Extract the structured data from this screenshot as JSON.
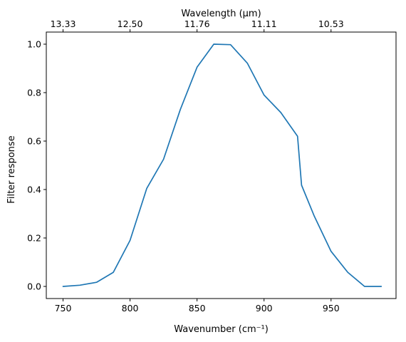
{
  "chart_data": {
    "type": "line",
    "title": "",
    "xlabel": "Wavenumber (cm⁻¹)",
    "ylabel": "Filter response",
    "secondary_xlabel": "Wavelength (μm)",
    "xlim": [
      737.5,
      998.5
    ],
    "ylim": [
      -0.05,
      1.05
    ],
    "x_ticks": [
      750,
      800,
      850,
      900,
      950
    ],
    "x_tick_labels": [
      "750",
      "800",
      "850",
      "900",
      "950"
    ],
    "y_ticks": [
      0.0,
      0.2,
      0.4,
      0.6,
      0.8,
      1.0
    ],
    "y_tick_labels": [
      "0.0",
      "0.2",
      "0.4",
      "0.6",
      "0.8",
      "1.0"
    ],
    "secondary_x_ticks": [
      750,
      800,
      850,
      900,
      950
    ],
    "secondary_x_tick_labels": [
      "13.33",
      "12.50",
      "11.76",
      "11.11",
      "10.53"
    ],
    "grid": false,
    "legend": "none",
    "series": [
      {
        "color": "#1f77b4",
        "x": [
          750,
          762.5,
          775,
          787.5,
          800,
          812.5,
          825,
          837.5,
          850,
          862.5,
          875,
          887.5,
          900,
          912.5,
          925,
          928,
          937.5,
          950,
          962.5,
          975,
          987.5
        ],
        "y": [
          0.0,
          0.005,
          0.017,
          0.058,
          0.19,
          0.405,
          0.525,
          0.73,
          0.905,
          1.0,
          0.998,
          0.922,
          0.79,
          0.718,
          0.62,
          0.418,
          0.29,
          0.145,
          0.058,
          0.0,
          0.0
        ]
      }
    ]
  }
}
